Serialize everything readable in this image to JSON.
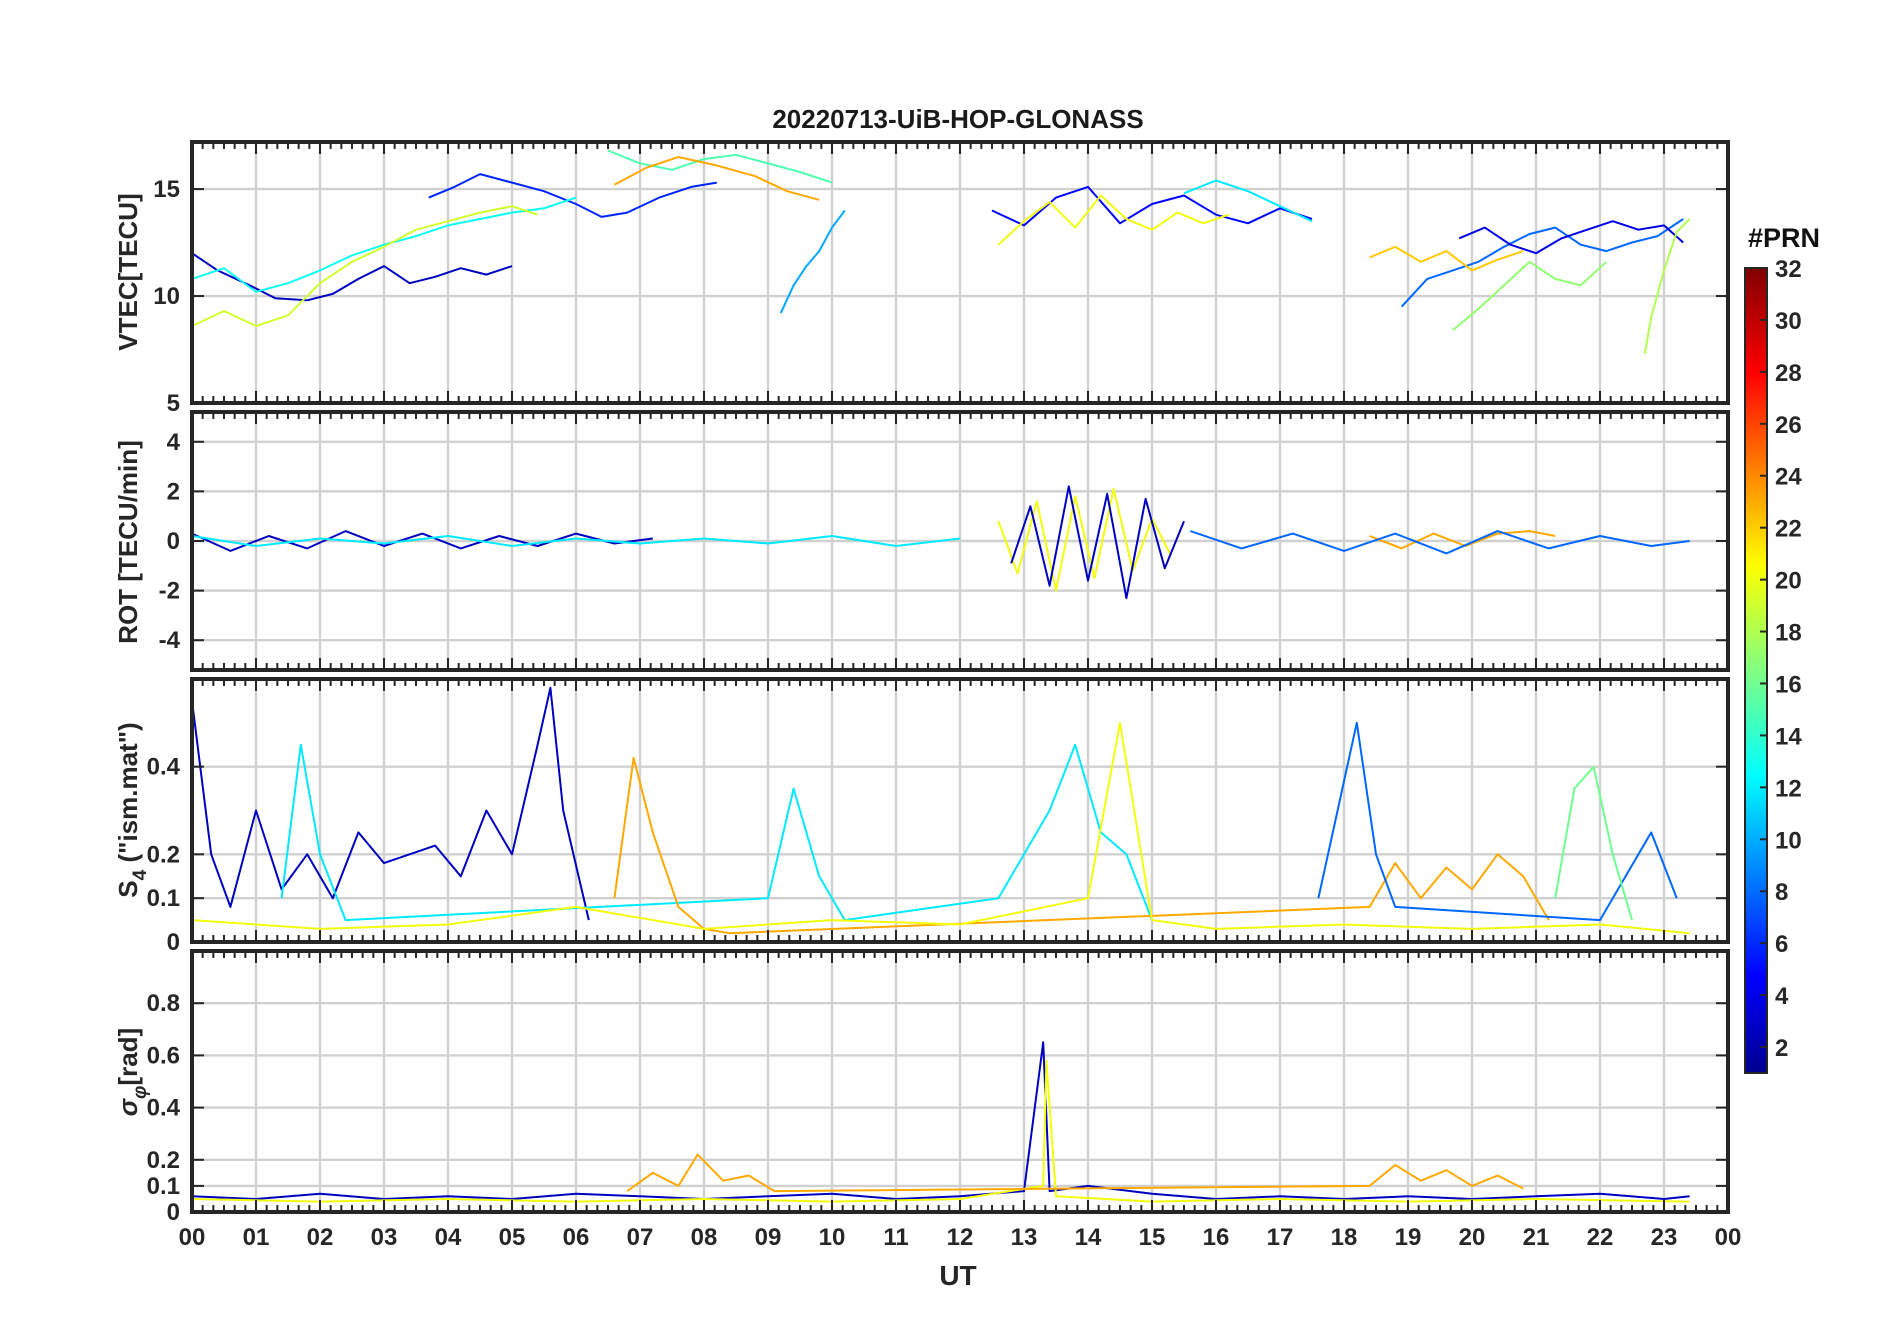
{
  "chart_data": {
    "type": "line",
    "title": "20220713-UiB-HOP-GLONASS",
    "xlabel": "UT",
    "xlim": [
      0,
      24
    ],
    "x_tick_labels": [
      "00",
      "01",
      "02",
      "03",
      "04",
      "05",
      "06",
      "07",
      "08",
      "09",
      "10",
      "11",
      "12",
      "13",
      "14",
      "15",
      "16",
      "17",
      "18",
      "19",
      "20",
      "21",
      "22",
      "23",
      "00"
    ],
    "panels": [
      {
        "id": "vtec",
        "ylabel": "VTEC[TECU]",
        "ylim": [
          5,
          17.2
        ],
        "yticks": [
          5,
          10,
          15
        ],
        "series": [
          {
            "name": "PRN 3",
            "prn": 3,
            "x": [
              0.0,
              0.4,
              0.9,
              1.3,
              1.8,
              2.2,
              2.6,
              3.0,
              3.4,
              3.8,
              4.2,
              4.6,
              5.0
            ],
            "values": [
              12.0,
              11.2,
              10.5,
              9.9,
              9.8,
              10.1,
              10.8,
              11.4,
              10.6,
              10.9,
              11.3,
              11.0,
              11.4
            ]
          },
          {
            "name": "PRN 6",
            "prn": 6,
            "x": [
              3.7,
              4.1,
              4.5,
              5.0,
              5.5,
              6.0,
              6.4,
              6.8,
              7.3,
              7.8,
              8.2
            ],
            "values": [
              14.6,
              15.1,
              15.7,
              15.3,
              14.9,
              14.3,
              13.7,
              13.9,
              14.6,
              15.1,
              15.3
            ]
          },
          {
            "name": "PRN 10",
            "prn": 10,
            "x": [
              9.2,
              9.4,
              9.6,
              9.8,
              10.0,
              10.2
            ],
            "values": [
              9.2,
              10.5,
              11.4,
              12.1,
              13.2,
              14.0
            ]
          },
          {
            "name": "PRN 13",
            "prn": 13,
            "x": [
              0.0,
              0.5,
              1.0,
              1.5,
              2.0,
              2.5,
              3.0,
              3.5,
              4.0,
              4.5,
              5.0,
              5.5,
              6.0
            ],
            "values": [
              10.8,
              11.3,
              10.2,
              10.6,
              11.2,
              11.9,
              12.4,
              12.8,
              13.3,
              13.6,
              13.9,
              14.1,
              14.6
            ]
          },
          {
            "name": "PRN 15",
            "prn": 15,
            "x": [
              6.5,
              7.0,
              7.5,
              8.0,
              8.5,
              9.0,
              9.5,
              10.0
            ],
            "values": [
              16.8,
              16.2,
              15.9,
              16.4,
              16.6,
              16.2,
              15.8,
              15.3
            ]
          },
          {
            "name": "PRN 19",
            "prn": 19,
            "x": [
              0.0,
              0.5,
              1.0,
              1.5,
              2.0,
              2.5,
              3.0,
              3.5,
              4.0,
              4.5,
              5.0,
              5.4
            ],
            "values": [
              8.6,
              9.3,
              8.6,
              9.1,
              10.6,
              11.6,
              12.3,
              13.1,
              13.5,
              13.9,
              14.2,
              13.8
            ]
          },
          {
            "name": "PRN 23",
            "prn": 23,
            "x": [
              6.6,
              7.1,
              7.6,
              8.2,
              8.8,
              9.3,
              9.8
            ],
            "values": [
              15.2,
              16.0,
              16.5,
              16.1,
              15.6,
              14.9,
              14.5
            ]
          },
          {
            "name": "PRN 5",
            "prn": 5,
            "x": [
              12.5,
              13.0,
              13.5,
              14.0,
              14.5,
              15.0,
              15.5,
              16.0,
              16.5,
              17.0,
              17.5
            ],
            "values": [
              14.0,
              13.3,
              14.6,
              15.1,
              13.4,
              14.3,
              14.7,
              13.8,
              13.4,
              14.1,
              13.6
            ]
          },
          {
            "name": "PRN 20",
            "prn": 20,
            "x": [
              12.6,
              13.0,
              13.4,
              13.8,
              14.2,
              14.6,
              15.0,
              15.4,
              15.8,
              16.2
            ],
            "values": [
              12.4,
              13.5,
              14.4,
              13.2,
              14.7,
              13.6,
              13.1,
              13.9,
              13.4,
              13.8
            ]
          },
          {
            "name": "PRN 12",
            "prn": 12,
            "x": [
              15.5,
              16.0,
              16.5,
              17.0,
              17.5
            ],
            "values": [
              14.8,
              15.4,
              14.9,
              14.2,
              13.5
            ]
          },
          {
            "name": "PRN 8",
            "prn": 8,
            "x": [
              18.9,
              19.3,
              19.7,
              20.1,
              20.5,
              20.9,
              21.3,
              21.7,
              22.1,
              22.5,
              22.9,
              23.3
            ],
            "values": [
              9.5,
              10.8,
              11.2,
              11.6,
              12.3,
              12.9,
              13.2,
              12.4,
              12.1,
              12.5,
              12.8,
              13.6
            ]
          },
          {
            "name": "PRN 4",
            "prn": 4,
            "x": [
              19.8,
              20.2,
              20.6,
              21.0,
              21.4,
              21.8,
              22.2,
              22.6,
              23.0,
              23.3
            ],
            "values": [
              12.7,
              13.2,
              12.4,
              12.0,
              12.7,
              13.1,
              13.5,
              13.1,
              13.3,
              12.5
            ]
          },
          {
            "name": "PRN 17",
            "prn": 17,
            "x": [
              19.7,
              20.1,
              20.5,
              20.9,
              21.3,
              21.7,
              22.1
            ],
            "values": [
              8.4,
              9.4,
              10.5,
              11.6,
              10.8,
              10.5,
              11.6
            ]
          },
          {
            "name": "PRN 22",
            "prn": 22,
            "x": [
              18.4,
              18.8,
              19.2,
              19.6,
              20.0,
              20.4,
              20.8
            ],
            "values": [
              11.8,
              12.3,
              11.6,
              12.1,
              11.2,
              11.7,
              12.1
            ]
          },
          {
            "name": "PRN 18",
            "prn": 18,
            "x": [
              22.7,
              22.8,
              23.0,
              23.2,
              23.4
            ],
            "values": [
              7.3,
              9.0,
              11.2,
              13.0,
              13.6
            ]
          }
        ]
      },
      {
        "id": "rot",
        "ylabel": "ROT [TECU/min]",
        "ylim": [
          -5.2,
          5.2
        ],
        "yticks": [
          -4,
          -2,
          0,
          2,
          4
        ],
        "series": [
          {
            "name": "PRN 3",
            "prn": 3,
            "x": [
              0.0,
              0.6,
              1.2,
              1.8,
              2.4,
              3.0,
              3.6,
              4.2,
              4.8,
              5.4,
              6.0,
              6.6,
              7.2
            ],
            "values": [
              0.3,
              -0.4,
              0.2,
              -0.3,
              0.4,
              -0.2,
              0.3,
              -0.3,
              0.2,
              -0.2,
              0.3,
              -0.1,
              0.1
            ]
          },
          {
            "name": "PRN 20",
            "prn": 20,
            "x": [
              12.6,
              12.9,
              13.2,
              13.5,
              13.8,
              14.1,
              14.4,
              14.7,
              15.0,
              15.3
            ],
            "values": [
              0.8,
              -1.3,
              1.6,
              -2.0,
              1.8,
              -1.5,
              2.1,
              -1.2,
              0.9,
              -0.6
            ]
          },
          {
            "name": "PRN 3b",
            "prn": 3,
            "x": [
              12.8,
              13.1,
              13.4,
              13.7,
              14.0,
              14.3,
              14.6,
              14.9,
              15.2,
              15.5
            ],
            "values": [
              -0.9,
              1.4,
              -1.8,
              2.2,
              -1.6,
              1.9,
              -2.3,
              1.7,
              -1.1,
              0.8
            ]
          },
          {
            "name": "PRN 12",
            "prn": 12,
            "x": [
              0.0,
              1.0,
              2.0,
              3.0,
              4.0,
              5.0,
              6.0,
              7.0,
              8.0,
              9.0,
              10.0,
              11.0,
              12.0
            ],
            "values": [
              0.2,
              -0.2,
              0.1,
              -0.1,
              0.2,
              -0.2,
              0.1,
              -0.1,
              0.1,
              -0.1,
              0.2,
              -0.2,
              0.1
            ]
          },
          {
            "name": "PRN 23",
            "prn": 23,
            "x": [
              18.4,
              18.9,
              19.4,
              19.9,
              20.4,
              20.9,
              21.3
            ],
            "values": [
              0.2,
              -0.3,
              0.3,
              -0.2,
              0.3,
              0.4,
              0.2
            ]
          },
          {
            "name": "PRN 8",
            "prn": 8,
            "x": [
              15.6,
              16.4,
              17.2,
              18.0,
              18.8,
              19.6,
              20.4,
              21.2,
              22.0,
              22.8,
              23.4
            ],
            "values": [
              0.4,
              -0.3,
              0.3,
              -0.4,
              0.3,
              -0.5,
              0.4,
              -0.3,
              0.2,
              -0.2,
              0.0
            ]
          }
        ]
      },
      {
        "id": "s4",
        "ylabel": "S4 (\"ism.mat\")",
        "ylim": [
          0,
          0.6
        ],
        "yticks": [
          0,
          0.1,
          0.2,
          0.4
        ],
        "series": [
          {
            "name": "PRN 3",
            "prn": 3,
            "x": [
              0.0,
              0.3,
              0.6,
              1.0,
              1.4,
              1.8,
              2.2,
              2.6,
              3.0,
              3.4,
              3.8,
              4.2,
              4.6,
              5.0,
              5.4,
              5.6,
              5.8,
              6.2
            ],
            "values": [
              0.55,
              0.2,
              0.08,
              0.3,
              0.12,
              0.2,
              0.1,
              0.25,
              0.18,
              0.2,
              0.22,
              0.15,
              0.3,
              0.2,
              0.45,
              0.58,
              0.3,
              0.05
            ]
          },
          {
            "name": "PRN 12",
            "prn": 12,
            "x": [
              1.4,
              1.7,
              2.0,
              2.4,
              9.0,
              9.4,
              9.8,
              10.2,
              12.6,
              13.0,
              13.4,
              13.8,
              14.2,
              14.6,
              15.0
            ],
            "values": [
              0.1,
              0.45,
              0.2,
              0.05,
              0.1,
              0.35,
              0.15,
              0.05,
              0.1,
              0.2,
              0.3,
              0.45,
              0.25,
              0.2,
              0.05
            ]
          },
          {
            "name": "PRN 23",
            "prn": 23,
            "x": [
              6.6,
              6.9,
              7.2,
              7.6,
              8.0,
              8.4,
              18.4,
              18.8,
              19.2,
              19.6,
              20.0,
              20.4,
              20.8,
              21.2
            ],
            "values": [
              0.1,
              0.42,
              0.25,
              0.08,
              0.03,
              0.02,
              0.08,
              0.18,
              0.1,
              0.17,
              0.12,
              0.2,
              0.15,
              0.05
            ]
          },
          {
            "name": "PRN 8",
            "prn": 8,
            "x": [
              17.6,
              17.9,
              18.2,
              18.5,
              18.8,
              22.0,
              22.4,
              22.8,
              23.2
            ],
            "values": [
              0.1,
              0.3,
              0.5,
              0.2,
              0.08,
              0.05,
              0.15,
              0.25,
              0.1
            ]
          },
          {
            "name": "PRN 16",
            "prn": 16,
            "x": [
              21.3,
              21.6,
              21.9,
              22.2,
              22.5
            ],
            "values": [
              0.1,
              0.35,
              0.4,
              0.2,
              0.05
            ]
          },
          {
            "name": "PRN 20",
            "prn": 20,
            "x": [
              0.0,
              2.0,
              4.0,
              6.0,
              8.0,
              10.0,
              12.0,
              14.0,
              14.5,
              15.0,
              16.0,
              18.0,
              20.0,
              22.0,
              23.4
            ],
            "values": [
              0.05,
              0.03,
              0.04,
              0.08,
              0.03,
              0.05,
              0.04,
              0.1,
              0.5,
              0.05,
              0.03,
              0.04,
              0.03,
              0.04,
              0.02
            ]
          }
        ]
      },
      {
        "id": "sigma_phi",
        "ylabel": "σφ[rad]",
        "ylim": [
          0,
          1.0
        ],
        "yticks": [
          0,
          0.1,
          0.2,
          0.4,
          0.6,
          0.8
        ],
        "series": [
          {
            "name": "PRN 3",
            "prn": 3,
            "x": [
              0.0,
              1.0,
              2.0,
              3.0,
              4.0,
              5.0,
              6.0,
              7.0,
              8.0,
              9.0,
              10.0,
              11.0,
              12.0,
              13.0,
              13.3,
              13.4,
              14.0,
              15.0,
              16.0,
              17.0,
              18.0,
              19.0,
              20.0,
              21.0,
              22.0,
              23.0,
              23.4
            ],
            "values": [
              0.06,
              0.05,
              0.07,
              0.05,
              0.06,
              0.05,
              0.07,
              0.06,
              0.05,
              0.06,
              0.07,
              0.05,
              0.06,
              0.08,
              0.65,
              0.08,
              0.1,
              0.07,
              0.05,
              0.06,
              0.05,
              0.06,
              0.05,
              0.06,
              0.07,
              0.05,
              0.06
            ]
          },
          {
            "name": "PRN 20",
            "prn": 20,
            "x": [
              0.0,
              2.0,
              4.0,
              6.0,
              8.0,
              10.0,
              12.0,
              13.3,
              13.35,
              13.5,
              15.0,
              17.0,
              19.0,
              21.0,
              23.4
            ],
            "values": [
              0.05,
              0.04,
              0.05,
              0.04,
              0.05,
              0.04,
              0.05,
              0.1,
              0.58,
              0.06,
              0.04,
              0.05,
              0.04,
              0.05,
              0.04
            ]
          },
          {
            "name": "PRN 23",
            "prn": 23,
            "x": [
              6.8,
              7.2,
              7.6,
              7.9,
              8.3,
              8.7,
              9.1,
              18.4,
              18.8,
              19.2,
              19.6,
              20.0,
              20.4,
              20.8
            ],
            "values": [
              0.08,
              0.15,
              0.1,
              0.22,
              0.12,
              0.14,
              0.08,
              0.1,
              0.18,
              0.12,
              0.16,
              0.1,
              0.14,
              0.09
            ]
          }
        ]
      }
    ],
    "colorbar": {
      "title": "#PRN",
      "range": [
        1,
        32
      ],
      "tick_labels": [
        "2",
        "4",
        "6",
        "8",
        "10",
        "12",
        "14",
        "16",
        "18",
        "20",
        "22",
        "24",
        "26",
        "28",
        "30",
        "32"
      ],
      "colormap": "jet"
    }
  }
}
